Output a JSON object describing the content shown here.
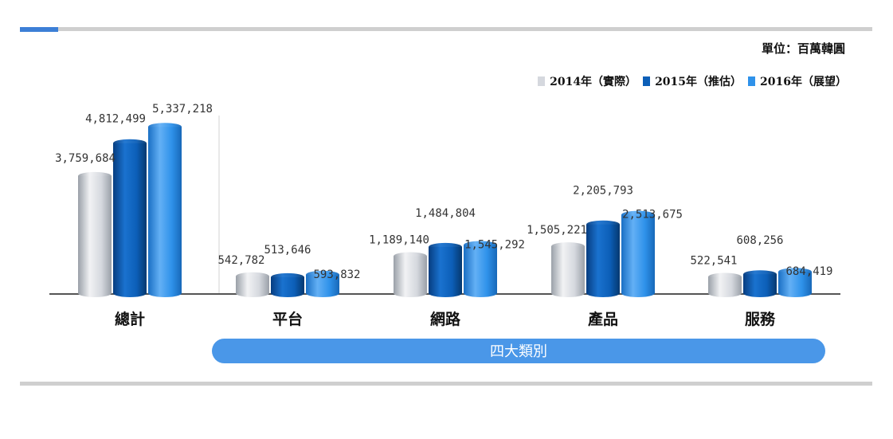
{
  "unit": "單位：百萬韓圓",
  "colors": {
    "s2014": "#d5d8de",
    "s2015": "#0c5fb8",
    "s2016": "#2f92ea",
    "banner": "#4a97e8",
    "rule": "#cfcfcf",
    "accent": "#3c7fd6"
  },
  "chart_data": {
    "type": "bar",
    "categories": [
      "總計",
      "平台",
      "網路",
      "產品",
      "服務"
    ],
    "series": [
      {
        "name": "2014年（實際）",
        "values": [
          3759684,
          542782,
          1189140,
          1505221,
          522541
        ]
      },
      {
        "name": "2015年（推估）",
        "values": [
          4812499,
          513646,
          1484804,
          2205793,
          608256
        ]
      },
      {
        "name": "2016年（展望）",
        "values": [
          5337218,
          593832,
          1545292,
          2513675,
          684419
        ]
      }
    ],
    "data_labels": [
      [
        "3,759,684",
        "4,812,499",
        "5,337,218"
      ],
      [
        "542,782",
        "513,646",
        "593,832"
      ],
      [
        "1,189,140",
        "1,484,804",
        "1,545,292"
      ],
      [
        "1,505,221",
        "2,205,793",
        "2,513,675"
      ],
      [
        "522,541",
        "608,256",
        "684,419"
      ]
    ],
    "group_label": "四大類別",
    "ylim": [
      0,
      5700000
    ],
    "grid": false,
    "legend_position": "top-right"
  }
}
